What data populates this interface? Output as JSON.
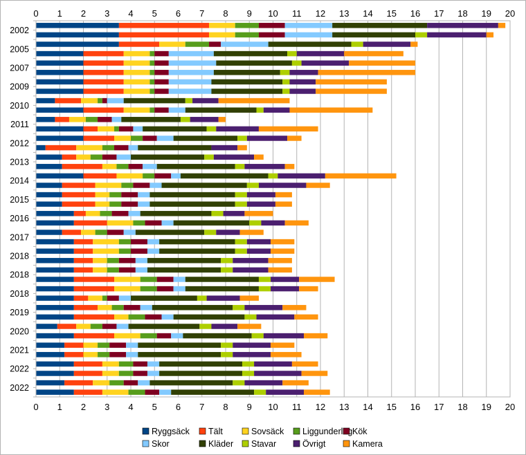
{
  "chart_data": {
    "type": "bar",
    "orientation": "horizontal",
    "stacked": true,
    "xlim": [
      0,
      20
    ],
    "x_ticks": [
      0,
      1,
      2,
      3,
      4,
      5,
      6,
      7,
      8,
      9,
      10,
      11,
      12,
      13,
      14,
      15,
      16,
      17,
      18,
      19,
      20
    ],
    "grid": true,
    "legend_position": "bottom",
    "row_labels": [
      "2002",
      "",
      "2005",
      "",
      "2007",
      "",
      "2009",
      "",
      "2010",
      "",
      "2011",
      "",
      "2012",
      "",
      "2013",
      "",
      "2014",
      "",
      "2015",
      "",
      "2016",
      "",
      "2017",
      "",
      "2018",
      "",
      "2018",
      "",
      "2018",
      "",
      "2019",
      "",
      "2020",
      "",
      "2021",
      "",
      "2022",
      "",
      "2022",
      ""
    ],
    "series": [
      {
        "name": "Ryggsäck",
        "color": "#004586"
      },
      {
        "name": "Tält",
        "color": "#ff420e"
      },
      {
        "name": "Sovsäck",
        "color": "#ffd320"
      },
      {
        "name": "Liggunderlag",
        "color": "#579d1c"
      },
      {
        "name": "Kök",
        "color": "#7e0021"
      },
      {
        "name": "Skor",
        "color": "#83caff"
      },
      {
        "name": "Kläder",
        "color": "#314004"
      },
      {
        "name": "Stavar",
        "color": "#aecf00"
      },
      {
        "name": "Övrigt",
        "color": "#4b1f6f"
      },
      {
        "name": "Kamera",
        "color": "#ff950e"
      }
    ],
    "rows": [
      [
        3.5,
        3.8,
        1.1,
        1.0,
        1.1,
        2.0,
        4.0,
        0.0,
        3.0,
        0.3
      ],
      [
        3.5,
        3.8,
        1.1,
        1.0,
        1.1,
        2.0,
        3.5,
        0.5,
        2.5,
        0.3
      ],
      [
        3.5,
        1.7,
        1.1,
        1.0,
        0.5,
        2.0,
        3.5,
        0.5,
        2.0,
        0.3
      ],
      [
        2.0,
        1.7,
        1.1,
        0.2,
        0.6,
        1.9,
        3.1,
        0.4,
        2.0,
        2.5
      ],
      [
        2.0,
        1.7,
        1.1,
        0.2,
        0.6,
        2.0,
        3.2,
        0.4,
        2.0,
        2.8
      ],
      [
        2.0,
        1.7,
        1.1,
        0.2,
        0.6,
        1.9,
        2.8,
        0.4,
        1.2,
        4.1
      ],
      [
        2.0,
        1.7,
        1.1,
        0.2,
        0.6,
        1.8,
        3.0,
        0.3,
        1.1,
        3.0
      ],
      [
        2.0,
        1.7,
        1.1,
        0.2,
        0.6,
        1.8,
        3.0,
        0.3,
        1.1,
        3.0
      ],
      [
        0.8,
        1.1,
        0.7,
        0.2,
        0.2,
        0.7,
        2.6,
        0.3,
        1.1,
        3.0
      ],
      [
        2.0,
        1.7,
        1.1,
        0.2,
        0.6,
        0.7,
        3.0,
        0.3,
        1.1,
        3.5
      ],
      [
        0.8,
        0.6,
        0.7,
        0.5,
        0.6,
        0.4,
        2.5,
        0.4,
        1.2,
        0.3
      ],
      [
        2.0,
        0.6,
        0.7,
        0.2,
        0.6,
        0.4,
        2.7,
        0.4,
        1.8,
        2.5
      ],
      [
        2.0,
        1.3,
        0.7,
        0.5,
        0.6,
        0.7,
        2.7,
        0.4,
        1.7,
        0.6
      ],
      [
        0.4,
        1.3,
        1.1,
        0.5,
        0.6,
        0.4,
        3.1,
        0.0,
        1.1,
        0.4
      ],
      [
        1.1,
        0.6,
        0.6,
        0.5,
        0.6,
        0.6,
        3.1,
        0.4,
        1.7,
        0.4
      ],
      [
        1.1,
        1.7,
        0.6,
        0.5,
        0.6,
        0.6,
        3.3,
        0.4,
        1.7,
        0.4
      ],
      [
        2.0,
        1.4,
        1.1,
        0.5,
        0.7,
        0.4,
        3.7,
        0.4,
        2.0,
        3.0
      ],
      [
        1.1,
        1.4,
        1.1,
        0.5,
        0.7,
        0.5,
        3.6,
        0.5,
        2.0,
        1.0
      ],
      [
        1.1,
        1.4,
        0.6,
        0.5,
        0.7,
        0.5,
        3.6,
        0.5,
        1.2,
        0.7
      ],
      [
        1.1,
        1.4,
        0.6,
        0.5,
        0.7,
        0.5,
        3.6,
        0.5,
        1.2,
        0.7
      ],
      [
        1.6,
        0.5,
        0.6,
        0.5,
        0.7,
        0.5,
        3.0,
        0.5,
        0.9,
        1.2
      ],
      [
        1.6,
        1.4,
        1.1,
        0.5,
        0.7,
        0.5,
        3.2,
        0.5,
        1.0,
        1.0
      ],
      [
        1.1,
        0.8,
        0.6,
        0.5,
        0.7,
        0.5,
        2.9,
        0.5,
        1.0,
        1.0
      ],
      [
        1.6,
        0.8,
        1.1,
        0.5,
        0.7,
        0.5,
        3.2,
        0.5,
        1.0,
        1.0
      ],
      [
        1.6,
        0.8,
        1.1,
        0.5,
        0.7,
        0.5,
        3.2,
        0.5,
        1.0,
        1.0
      ],
      [
        1.6,
        0.8,
        0.6,
        0.5,
        0.7,
        0.5,
        3.1,
        0.5,
        1.5,
        1.0
      ],
      [
        1.6,
        0.8,
        0.6,
        0.5,
        0.7,
        0.5,
        3.1,
        0.5,
        1.5,
        1.0
      ],
      [
        1.6,
        1.7,
        1.1,
        0.7,
        0.7,
        0.5,
        3.1,
        0.5,
        1.2,
        1.5
      ],
      [
        1.6,
        1.7,
        1.1,
        0.7,
        0.7,
        0.5,
        3.1,
        0.5,
        1.2,
        0.8
      ],
      [
        1.6,
        0.6,
        0.6,
        0.2,
        0.5,
        0.5,
        2.8,
        0.4,
        1.4,
        0.8
      ],
      [
        1.6,
        1.0,
        0.6,
        0.5,
        0.7,
        0.5,
        3.4,
        0.5,
        1.6,
        1.0
      ],
      [
        1.6,
        1.7,
        0.6,
        0.7,
        0.7,
        0.5,
        3.0,
        0.5,
        1.6,
        1.0
      ],
      [
        0.9,
        0.8,
        0.6,
        0.5,
        0.6,
        0.5,
        3.0,
        0.5,
        1.1,
        1.0
      ],
      [
        1.6,
        1.7,
        1.1,
        0.7,
        0.6,
        0.5,
        2.9,
        0.5,
        1.7,
        1.0
      ],
      [
        1.2,
        0.8,
        0.6,
        0.5,
        0.7,
        0.5,
        3.5,
        0.5,
        1.6,
        1.0
      ],
      [
        1.2,
        0.8,
        0.6,
        0.5,
        0.7,
        0.5,
        3.5,
        0.5,
        1.6,
        1.3
      ],
      [
        1.6,
        1.2,
        0.7,
        0.6,
        0.6,
        0.5,
        3.5,
        0.5,
        1.6,
        1.1
      ],
      [
        1.6,
        1.2,
        0.7,
        0.6,
        0.6,
        0.5,
        3.5,
        0.5,
        2.0,
        1.1
      ],
      [
        1.2,
        1.2,
        0.7,
        0.6,
        0.6,
        0.5,
        3.5,
        0.5,
        1.6,
        1.1
      ],
      [
        1.6,
        1.2,
        1.1,
        0.7,
        0.6,
        0.5,
        3.5,
        0.5,
        1.6,
        1.1
      ]
    ]
  }
}
